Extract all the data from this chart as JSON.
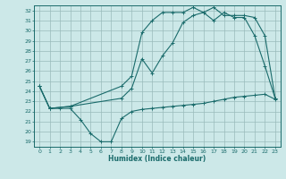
{
  "xlabel": "Humidex (Indice chaleur)",
  "bg_color": "#cce8e8",
  "line_color": "#1a6b6b",
  "grid_color": "#99bbbb",
  "xlim": [
    -0.5,
    23.5
  ],
  "ylim": [
    18.5,
    32.5
  ],
  "xticks": [
    0,
    1,
    2,
    3,
    4,
    5,
    6,
    7,
    8,
    9,
    10,
    11,
    12,
    13,
    14,
    15,
    16,
    17,
    18,
    19,
    20,
    21,
    22,
    23
  ],
  "yticks": [
    19,
    20,
    21,
    22,
    23,
    24,
    25,
    26,
    27,
    28,
    29,
    30,
    31,
    32
  ],
  "curve_bottom_x": [
    0,
    1,
    2,
    3,
    4,
    5,
    6,
    7,
    8,
    9,
    10,
    11,
    12,
    13,
    14,
    15,
    16,
    17,
    18,
    19,
    20,
    21,
    22,
    23
  ],
  "curve_bottom_y": [
    24.5,
    22.3,
    22.3,
    22.3,
    21.2,
    19.8,
    19.0,
    19.0,
    21.3,
    22.0,
    22.2,
    22.3,
    22.4,
    22.5,
    22.6,
    22.7,
    22.8,
    23.0,
    23.2,
    23.4,
    23.5,
    23.6,
    23.7,
    23.2
  ],
  "curve_upper_x": [
    0,
    1,
    3,
    8,
    9,
    10,
    11,
    12,
    13,
    14,
    15,
    16,
    17,
    18,
    19,
    20,
    21,
    22,
    23
  ],
  "curve_upper_y": [
    24.5,
    22.3,
    22.5,
    24.5,
    25.5,
    29.8,
    31.0,
    31.8,
    31.8,
    31.8,
    32.3,
    31.8,
    31.0,
    31.8,
    31.3,
    31.3,
    29.5,
    26.5,
    23.3
  ],
  "curve_mid_x": [
    0,
    1,
    3,
    8,
    9,
    10,
    11,
    12,
    13,
    14,
    15,
    16,
    17,
    18,
    19,
    20,
    21,
    22,
    23
  ],
  "curve_mid_y": [
    24.5,
    22.3,
    22.5,
    23.3,
    24.3,
    27.2,
    25.8,
    27.5,
    28.8,
    30.8,
    31.5,
    31.8,
    32.3,
    31.5,
    31.5,
    31.5,
    31.3,
    29.5,
    23.3
  ]
}
